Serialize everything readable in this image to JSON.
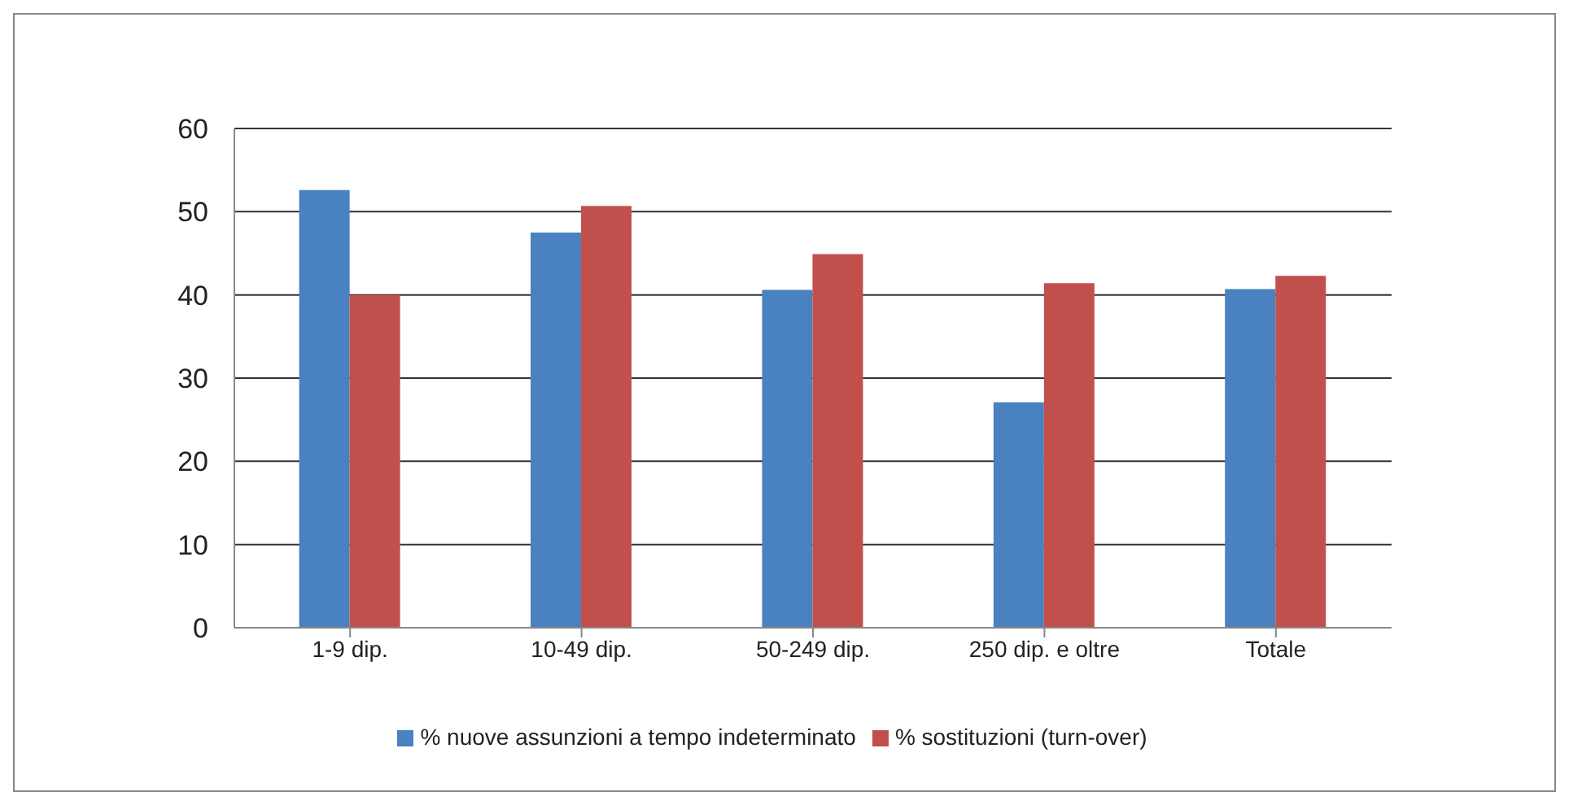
{
  "chart_data": {
    "type": "bar",
    "categories": [
      "1-9 dip.",
      "10-49 dip.",
      "50-249 dip.",
      "250 dip. e oltre",
      "Totale"
    ],
    "series": [
      {
        "name": "% nuove assunzioni a tempo indeterminato",
        "color": "#4a81c0",
        "values": [
          52.6,
          47.5,
          40.6,
          27.1,
          40.7
        ]
      },
      {
        "name": "% sostituzioni (turn-over)",
        "color": "#c1504c",
        "values": [
          40,
          50.7,
          44.9,
          41.4,
          42.3
        ]
      }
    ],
    "ylim": [
      0,
      60
    ],
    "yticks": [
      0,
      10,
      20,
      30,
      40,
      50,
      60
    ],
    "grid": "y",
    "legend": "bottom"
  }
}
